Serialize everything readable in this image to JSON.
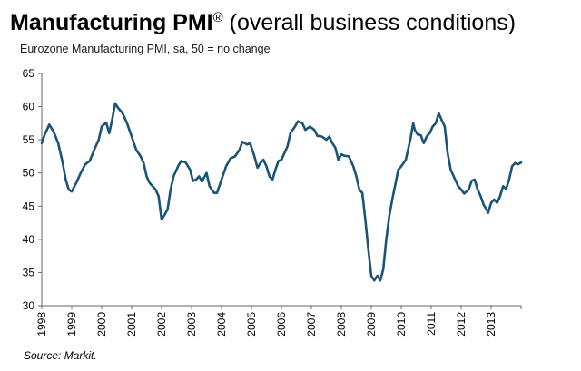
{
  "title": {
    "main": "Manufacturing PMI",
    "reg": "®",
    "rest": " (overall business conditions)"
  },
  "subtitle": "Eurozone Manufacturing PMI, sa, 50 = no change",
  "source": "Source: Markit.",
  "colors": {
    "line": "#1b5476",
    "axis": "#666666"
  },
  "chart_data": {
    "type": "line",
    "title": "Manufacturing PMI® (overall business conditions)",
    "subtitle": "Eurozone Manufacturing PMI, sa, 50 = no change",
    "xlabel": "",
    "ylabel": "",
    "ylim": [
      30,
      65
    ],
    "xlim": [
      1998.0,
      2014.0
    ],
    "yticks": [
      30,
      35,
      40,
      45,
      50,
      55,
      60,
      65
    ],
    "xticks": [
      "1998",
      "1999",
      "2000",
      "2001",
      "2002",
      "2003",
      "2004",
      "2005",
      "2006",
      "2007",
      "2008",
      "2009",
      "2010",
      "2011",
      "2012",
      "2013"
    ],
    "grid": false,
    "series": [
      {
        "name": "",
        "points": [
          [
            1998.0,
            54.5
          ],
          [
            1998.1,
            55.8
          ],
          [
            1998.25,
            57.3
          ],
          [
            1998.4,
            56.2
          ],
          [
            1998.55,
            54.5
          ],
          [
            1998.7,
            51.5
          ],
          [
            1998.8,
            49.0
          ],
          [
            1998.9,
            47.5
          ],
          [
            1999.0,
            47.2
          ],
          [
            1999.15,
            48.5
          ],
          [
            1999.3,
            50.0
          ],
          [
            1999.45,
            51.3
          ],
          [
            1999.6,
            51.8
          ],
          [
            1999.75,
            53.5
          ],
          [
            1999.9,
            55.0
          ],
          [
            2000.0,
            57.0
          ],
          [
            2000.15,
            57.6
          ],
          [
            2000.25,
            56.0
          ],
          [
            2000.35,
            58.0
          ],
          [
            2000.45,
            60.5
          ],
          [
            2000.55,
            59.8
          ],
          [
            2000.7,
            59.0
          ],
          [
            2000.85,
            57.5
          ],
          [
            2001.0,
            55.5
          ],
          [
            2001.15,
            53.5
          ],
          [
            2001.3,
            52.5
          ],
          [
            2001.4,
            51.5
          ],
          [
            2001.5,
            49.5
          ],
          [
            2001.6,
            48.5
          ],
          [
            2001.7,
            48.0
          ],
          [
            2001.8,
            47.5
          ],
          [
            2001.9,
            46.5
          ],
          [
            2002.0,
            43.0
          ],
          [
            2002.1,
            43.7
          ],
          [
            2002.2,
            44.5
          ],
          [
            2002.3,
            47.5
          ],
          [
            2002.4,
            49.5
          ],
          [
            2002.55,
            51.0
          ],
          [
            2002.65,
            51.8
          ],
          [
            2002.8,
            51.6
          ],
          [
            2002.95,
            50.5
          ],
          [
            2003.05,
            48.8
          ],
          [
            2003.15,
            49.0
          ],
          [
            2003.25,
            49.5
          ],
          [
            2003.35,
            48.7
          ],
          [
            2003.5,
            50.0
          ],
          [
            2003.6,
            48.0
          ],
          [
            2003.75,
            47.0
          ],
          [
            2003.85,
            47.0
          ],
          [
            2004.0,
            49.0
          ],
          [
            2004.15,
            51.0
          ],
          [
            2004.3,
            52.2
          ],
          [
            2004.45,
            52.5
          ],
          [
            2004.6,
            53.5
          ],
          [
            2004.7,
            54.7
          ],
          [
            2004.85,
            54.3
          ],
          [
            2004.95,
            54.5
          ],
          [
            2005.1,
            52.5
          ],
          [
            2005.2,
            50.8
          ],
          [
            2005.3,
            51.5
          ],
          [
            2005.4,
            52.0
          ],
          [
            2005.5,
            51.0
          ],
          [
            2005.6,
            49.5
          ],
          [
            2005.7,
            49.0
          ],
          [
            2005.8,
            50.5
          ],
          [
            2005.9,
            51.8
          ],
          [
            2006.0,
            52.0
          ],
          [
            2006.1,
            53.0
          ],
          [
            2006.2,
            54.0
          ],
          [
            2006.3,
            56.0
          ],
          [
            2006.45,
            57.0
          ],
          [
            2006.55,
            57.8
          ],
          [
            2006.7,
            57.5
          ],
          [
            2006.8,
            56.5
          ],
          [
            2006.95,
            57.0
          ],
          [
            2007.1,
            56.5
          ],
          [
            2007.2,
            55.6
          ],
          [
            2007.35,
            55.5
          ],
          [
            2007.5,
            55.0
          ],
          [
            2007.6,
            55.5
          ],
          [
            2007.7,
            54.5
          ],
          [
            2007.8,
            53.8
          ],
          [
            2007.9,
            52.0
          ],
          [
            2008.0,
            52.8
          ],
          [
            2008.1,
            52.6
          ],
          [
            2008.25,
            52.5
          ],
          [
            2008.4,
            51.0
          ],
          [
            2008.5,
            49.5
          ],
          [
            2008.6,
            47.5
          ],
          [
            2008.7,
            47.0
          ],
          [
            2008.8,
            43.0
          ],
          [
            2008.9,
            38.5
          ],
          [
            2009.0,
            34.5
          ],
          [
            2009.1,
            33.8
          ],
          [
            2009.2,
            34.5
          ],
          [
            2009.3,
            33.8
          ],
          [
            2009.4,
            35.5
          ],
          [
            2009.5,
            40.0
          ],
          [
            2009.6,
            43.5
          ],
          [
            2009.7,
            46.0
          ],
          [
            2009.8,
            48.2
          ],
          [
            2009.9,
            50.5
          ],
          [
            2010.0,
            51.0
          ],
          [
            2010.15,
            52.0
          ],
          [
            2010.3,
            55.0
          ],
          [
            2010.4,
            57.5
          ],
          [
            2010.45,
            56.5
          ],
          [
            2010.55,
            55.8
          ],
          [
            2010.65,
            55.7
          ],
          [
            2010.75,
            54.5
          ],
          [
            2010.85,
            55.5
          ],
          [
            2010.95,
            56.0
          ],
          [
            2011.05,
            57.0
          ],
          [
            2011.15,
            57.5
          ],
          [
            2011.25,
            59.0
          ],
          [
            2011.35,
            58.0
          ],
          [
            2011.45,
            57.0
          ],
          [
            2011.55,
            53.0
          ],
          [
            2011.65,
            50.5
          ],
          [
            2011.8,
            49.0
          ],
          [
            2011.9,
            48.0
          ],
          [
            2012.0,
            47.5
          ],
          [
            2012.1,
            46.9
          ],
          [
            2012.25,
            47.5
          ],
          [
            2012.35,
            48.8
          ],
          [
            2012.45,
            49.0
          ],
          [
            2012.55,
            47.5
          ],
          [
            2012.65,
            46.5
          ],
          [
            2012.75,
            45.2
          ],
          [
            2012.85,
            44.5
          ],
          [
            2012.9,
            44.0
          ],
          [
            2013.0,
            45.5
          ],
          [
            2013.1,
            46.0
          ],
          [
            2013.2,
            45.5
          ],
          [
            2013.3,
            46.5
          ],
          [
            2013.4,
            48.0
          ],
          [
            2013.5,
            47.6
          ],
          [
            2013.6,
            49.0
          ],
          [
            2013.7,
            51.0
          ],
          [
            2013.8,
            51.5
          ],
          [
            2013.9,
            51.3
          ],
          [
            2014.0,
            51.6
          ]
        ]
      }
    ]
  }
}
